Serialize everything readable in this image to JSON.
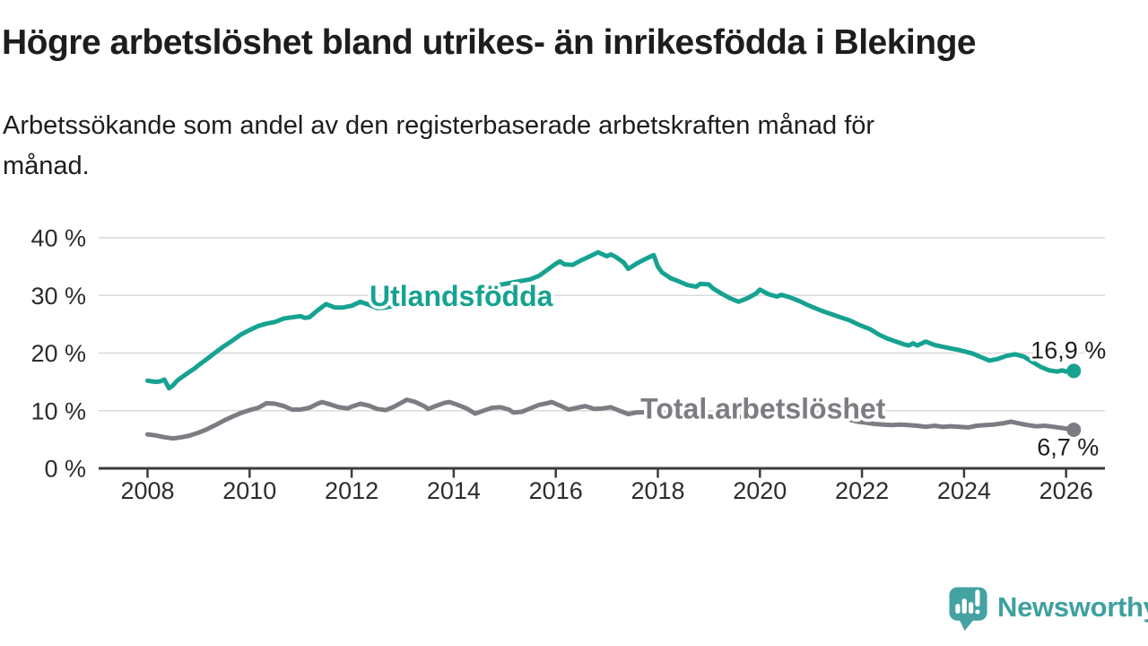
{
  "header": {
    "title": "Högre arbetslöshet bland utrikes- än inrikesfödda i Blekinge",
    "subtitle_line1": "Arbetssökande som andel av den registerbaserade arbetskraften månad för",
    "subtitle_line2": "månad."
  },
  "footer": {
    "brand": "Newsworthy",
    "brand_color": "#3FA0A0",
    "logo_icon": "newsworthy-speech-bubble-bar-chart-icon",
    "logo_fill": "#45A2A2"
  },
  "chart_data": {
    "type": "line",
    "title": "Högre arbetslöshet bland utrikes- än inrikesfödda i Blekinge",
    "xlabel": "",
    "ylabel": "",
    "ylim": [
      0,
      40
    ],
    "xlim": [
      2007.05,
      2026.8
    ],
    "grid": true,
    "x_ticks": [
      2008,
      2010,
      2012,
      2014,
      2016,
      2018,
      2020,
      2022,
      2024,
      2026
    ],
    "y_ticks": [
      0,
      10,
      20,
      30,
      40
    ],
    "y_tick_suffix": " %",
    "series": [
      {
        "id": "utlandsfodda",
        "name": "Utlandsfödda",
        "color": "#16A291",
        "label_at": [
          2012.35,
          28.2
        ],
        "end_label": {
          "text": "16,9 %",
          "anchor": "end",
          "dx": 36,
          "dy": -14
        },
        "points": [
          [
            2008.0,
            15.2
          ],
          [
            2008.08,
            15.1
          ],
          [
            2008.17,
            15.0
          ],
          [
            2008.25,
            15.1
          ],
          [
            2008.33,
            15.4
          ],
          [
            2008.42,
            13.9
          ],
          [
            2008.5,
            14.4
          ],
          [
            2008.58,
            15.2
          ],
          [
            2008.67,
            15.8
          ],
          [
            2008.75,
            16.3
          ],
          [
            2008.83,
            16.8
          ],
          [
            2008.92,
            17.3
          ],
          [
            2009.0,
            17.9
          ],
          [
            2009.17,
            19.0
          ],
          [
            2009.33,
            20.1
          ],
          [
            2009.5,
            21.2
          ],
          [
            2009.67,
            22.2
          ],
          [
            2009.83,
            23.2
          ],
          [
            2010.0,
            24.0
          ],
          [
            2010.17,
            24.7
          ],
          [
            2010.33,
            25.1
          ],
          [
            2010.5,
            25.4
          ],
          [
            2010.67,
            26.0
          ],
          [
            2010.83,
            26.2
          ],
          [
            2011.0,
            26.4
          ],
          [
            2011.08,
            26.1
          ],
          [
            2011.17,
            26.2
          ],
          [
            2011.33,
            27.4
          ],
          [
            2011.5,
            28.5
          ],
          [
            2011.67,
            27.9
          ],
          [
            2011.83,
            27.9
          ],
          [
            2012.0,
            28.2
          ],
          [
            2012.17,
            28.9
          ],
          [
            2012.33,
            28.4
          ],
          [
            2012.5,
            27.8
          ],
          [
            2012.67,
            27.9
          ],
          [
            2012.83,
            28.2
          ],
          [
            2013.0,
            28.5
          ],
          [
            2013.25,
            28.9
          ],
          [
            2013.5,
            29.2
          ],
          [
            2013.75,
            29.6
          ],
          [
            2014.0,
            30.0
          ],
          [
            2014.25,
            30.4
          ],
          [
            2014.5,
            31.0
          ],
          [
            2014.75,
            31.6
          ],
          [
            2015.0,
            32.0
          ],
          [
            2015.25,
            32.4
          ],
          [
            2015.5,
            32.8
          ],
          [
            2015.67,
            33.4
          ],
          [
            2015.83,
            34.4
          ],
          [
            2016.0,
            35.5
          ],
          [
            2016.08,
            35.9
          ],
          [
            2016.17,
            35.4
          ],
          [
            2016.33,
            35.3
          ],
          [
            2016.5,
            36.1
          ],
          [
            2016.67,
            36.8
          ],
          [
            2016.83,
            37.5
          ],
          [
            2016.92,
            37.1
          ],
          [
            2017.0,
            36.8
          ],
          [
            2017.08,
            37.1
          ],
          [
            2017.17,
            36.7
          ],
          [
            2017.33,
            35.7
          ],
          [
            2017.42,
            34.6
          ],
          [
            2017.58,
            35.5
          ],
          [
            2017.75,
            36.3
          ],
          [
            2017.92,
            37.0
          ],
          [
            2018.0,
            35.0
          ],
          [
            2018.08,
            34.0
          ],
          [
            2018.25,
            33.0
          ],
          [
            2018.42,
            32.4
          ],
          [
            2018.58,
            31.8
          ],
          [
            2018.75,
            31.5
          ],
          [
            2018.83,
            32.0
          ],
          [
            2019.0,
            31.9
          ],
          [
            2019.08,
            31.2
          ],
          [
            2019.25,
            30.3
          ],
          [
            2019.42,
            29.5
          ],
          [
            2019.58,
            28.9
          ],
          [
            2019.75,
            29.5
          ],
          [
            2019.92,
            30.3
          ],
          [
            2020.0,
            31.0
          ],
          [
            2020.17,
            30.2
          ],
          [
            2020.33,
            29.8
          ],
          [
            2020.42,
            30.1
          ],
          [
            2020.58,
            29.7
          ],
          [
            2020.75,
            29.1
          ],
          [
            2020.92,
            28.4
          ],
          [
            2021.08,
            27.8
          ],
          [
            2021.25,
            27.2
          ],
          [
            2021.42,
            26.7
          ],
          [
            2021.58,
            26.2
          ],
          [
            2021.75,
            25.7
          ],
          [
            2021.92,
            25.0
          ],
          [
            2022.0,
            24.7
          ],
          [
            2022.17,
            24.1
          ],
          [
            2022.33,
            23.2
          ],
          [
            2022.5,
            22.5
          ],
          [
            2022.67,
            22.0
          ],
          [
            2022.83,
            21.5
          ],
          [
            2022.92,
            21.3
          ],
          [
            2023.0,
            21.7
          ],
          [
            2023.08,
            21.3
          ],
          [
            2023.25,
            22.0
          ],
          [
            2023.42,
            21.4
          ],
          [
            2023.58,
            21.1
          ],
          [
            2023.75,
            20.8
          ],
          [
            2023.92,
            20.5
          ],
          [
            2024.0,
            20.3
          ],
          [
            2024.17,
            19.9
          ],
          [
            2024.33,
            19.3
          ],
          [
            2024.5,
            18.7
          ],
          [
            2024.67,
            19.0
          ],
          [
            2024.83,
            19.5
          ],
          [
            2025.0,
            19.8
          ],
          [
            2025.17,
            19.4
          ],
          [
            2025.33,
            18.5
          ],
          [
            2025.5,
            17.6
          ],
          [
            2025.67,
            17.0
          ],
          [
            2025.83,
            16.8
          ],
          [
            2025.92,
            17.0
          ],
          [
            2026.0,
            16.8
          ],
          [
            2026.15,
            16.9
          ]
        ]
      },
      {
        "id": "total-arbetsloshet",
        "name": "Total arbetslöshet",
        "color": "#7C7C82",
        "label_at": [
          2017.66,
          8.6
        ],
        "end_label": {
          "text": "6,7 %",
          "anchor": "end",
          "dx": 28,
          "dy": 28.5
        },
        "points": [
          [
            2008.0,
            5.9
          ],
          [
            2008.17,
            5.7
          ],
          [
            2008.33,
            5.4
          ],
          [
            2008.5,
            5.2
          ],
          [
            2008.67,
            5.4
          ],
          [
            2008.83,
            5.7
          ],
          [
            2009.0,
            6.2
          ],
          [
            2009.17,
            6.8
          ],
          [
            2009.33,
            7.5
          ],
          [
            2009.5,
            8.3
          ],
          [
            2009.67,
            9.0
          ],
          [
            2009.83,
            9.6
          ],
          [
            2010.0,
            10.1
          ],
          [
            2010.17,
            10.5
          ],
          [
            2010.33,
            11.3
          ],
          [
            2010.5,
            11.2
          ],
          [
            2010.67,
            10.8
          ],
          [
            2010.83,
            10.2
          ],
          [
            2011.0,
            10.2
          ],
          [
            2011.17,
            10.5
          ],
          [
            2011.33,
            11.2
          ],
          [
            2011.42,
            11.5
          ],
          [
            2011.58,
            11.1
          ],
          [
            2011.75,
            10.6
          ],
          [
            2011.92,
            10.4
          ],
          [
            2012.0,
            10.7
          ],
          [
            2012.17,
            11.2
          ],
          [
            2012.33,
            10.9
          ],
          [
            2012.5,
            10.3
          ],
          [
            2012.67,
            10.1
          ],
          [
            2012.83,
            10.7
          ],
          [
            2013.0,
            11.5
          ],
          [
            2013.08,
            11.9
          ],
          [
            2013.25,
            11.5
          ],
          [
            2013.42,
            10.8
          ],
          [
            2013.5,
            10.3
          ],
          [
            2013.67,
            10.9
          ],
          [
            2013.83,
            11.4
          ],
          [
            2013.92,
            11.5
          ],
          [
            2014.08,
            11.0
          ],
          [
            2014.25,
            10.4
          ],
          [
            2014.42,
            9.5
          ],
          [
            2014.58,
            10.0
          ],
          [
            2014.75,
            10.5
          ],
          [
            2014.92,
            10.6
          ],
          [
            2015.08,
            10.2
          ],
          [
            2015.17,
            9.7
          ],
          [
            2015.33,
            9.8
          ],
          [
            2015.5,
            10.4
          ],
          [
            2015.67,
            11.0
          ],
          [
            2015.83,
            11.3
          ],
          [
            2015.92,
            11.5
          ],
          [
            2016.08,
            10.9
          ],
          [
            2016.25,
            10.2
          ],
          [
            2016.42,
            10.5
          ],
          [
            2016.58,
            10.8
          ],
          [
            2016.75,
            10.3
          ],
          [
            2016.92,
            10.4
          ],
          [
            2017.08,
            10.6
          ],
          [
            2017.25,
            10.0
          ],
          [
            2017.42,
            9.4
          ],
          [
            2017.58,
            9.7
          ],
          [
            2018.0,
            9.8
          ],
          [
            2018.33,
            9.5
          ],
          [
            2018.67,
            9.2
          ],
          [
            2019.0,
            9.0
          ],
          [
            2019.33,
            8.8
          ],
          [
            2019.67,
            8.9
          ],
          [
            2020.0,
            9.5
          ],
          [
            2020.25,
            10.6
          ],
          [
            2020.5,
            10.8
          ],
          [
            2020.75,
            10.4
          ],
          [
            2021.0,
            10.0
          ],
          [
            2021.33,
            9.3
          ],
          [
            2021.67,
            8.6
          ],
          [
            2021.92,
            8.1
          ],
          [
            2022.08,
            7.9
          ],
          [
            2022.25,
            7.7
          ],
          [
            2022.42,
            7.6
          ],
          [
            2022.58,
            7.5
          ],
          [
            2022.75,
            7.6
          ],
          [
            2022.92,
            7.5
          ],
          [
            2023.08,
            7.4
          ],
          [
            2023.25,
            7.2
          ],
          [
            2023.42,
            7.4
          ],
          [
            2023.58,
            7.2
          ],
          [
            2023.75,
            7.3
          ],
          [
            2023.92,
            7.2
          ],
          [
            2024.08,
            7.1
          ],
          [
            2024.25,
            7.4
          ],
          [
            2024.42,
            7.5
          ],
          [
            2024.58,
            7.6
          ],
          [
            2024.75,
            7.8
          ],
          [
            2024.92,
            8.1
          ],
          [
            2025.08,
            7.8
          ],
          [
            2025.25,
            7.5
          ],
          [
            2025.42,
            7.3
          ],
          [
            2025.58,
            7.4
          ],
          [
            2025.75,
            7.2
          ],
          [
            2025.92,
            7.0
          ],
          [
            2026.0,
            6.9
          ],
          [
            2026.15,
            6.7
          ]
        ]
      }
    ]
  }
}
